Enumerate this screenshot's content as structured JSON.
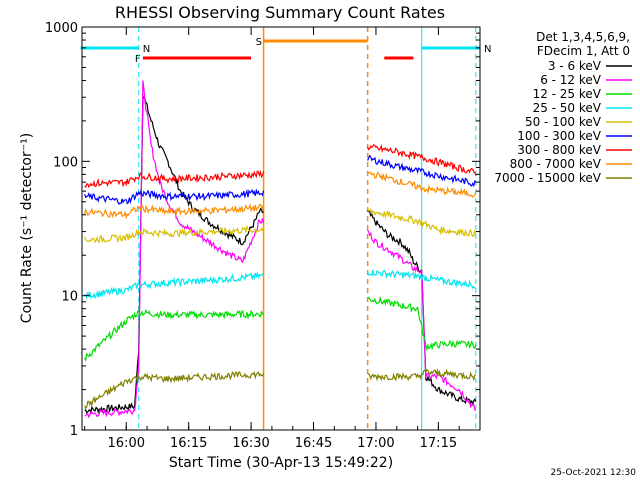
{
  "chart_data": {
    "type": "line",
    "title": "RHESSI Observing Summary Count Rates",
    "xlabel": "Start Time (30-Apr-13 15:49:22)",
    "ylabel": "Count Rate (s⁻¹ detector⁻¹)",
    "yscale": "log",
    "ylim": [
      1,
      1000
    ],
    "xlim": [
      "15:49:22",
      "17:25:00"
    ],
    "x_ticks": [
      "16:00",
      "16:15",
      "16:30",
      "16:45",
      "17:00",
      "17:15"
    ],
    "y_ticks": [
      "1",
      "10",
      "100",
      "1000"
    ],
    "grid": false,
    "legend_position": "right",
    "legend_header": [
      "Det 1,3,4,5,6,9,",
      "FDecim 1, Att 0"
    ],
    "footer_date": "25-Oct-2021 12:30",
    "gaps": [
      {
        "from": "16:33",
        "to": "16:58",
        "note": "no data"
      }
    ],
    "annotations": [
      {
        "label": "F",
        "from": "16:04",
        "to": "16:30",
        "color": "#ff0000"
      },
      {
        "label": "N",
        "from": "15:49",
        "to": "16:03",
        "color": "#00e5ee"
      },
      {
        "label": "N",
        "from": "17:11",
        "to": "17:25",
        "color": "#00e5ee"
      },
      {
        "label": "S",
        "from": "16:33",
        "to": "16:58",
        "color": "#ff8c00"
      },
      {
        "label": "",
        "from": "17:02",
        "to": "17:09",
        "color": "#ff0000"
      }
    ],
    "series": [
      {
        "name": "3 - 6 keV",
        "color": "#000000",
        "x": [
          "15:50",
          "16:02",
          "16:03",
          "16:04",
          "16:06",
          "16:08",
          "16:10",
          "16:13",
          "16:16",
          "16:20",
          "16:25",
          "16:28",
          "16:31",
          "16:32",
          "16:58",
          "17:00",
          "17:03",
          "17:06",
          "17:08",
          "17:09",
          "17:11",
          "17:12",
          "17:15",
          "17:20",
          "17:24"
        ],
        "values": [
          1.4,
          1.5,
          4,
          320,
          200,
          130,
          100,
          60,
          45,
          35,
          28,
          25,
          36,
          42,
          42,
          35,
          28,
          25,
          21,
          18,
          15,
          2.5,
          2,
          1.7,
          1.6
        ]
      },
      {
        "name": "6 - 12 keV",
        "color": "#ff00ff",
        "x": [
          "15:50",
          "16:02",
          "16:03",
          "16:04",
          "16:06",
          "16:08",
          "16:10",
          "16:13",
          "16:16",
          "16:20",
          "16:25",
          "16:28",
          "16:31",
          "16:32",
          "16:58",
          "17:00",
          "17:03",
          "17:06",
          "17:08",
          "17:09",
          "17:11",
          "17:12",
          "17:15",
          "17:20",
          "17:24"
        ],
        "values": [
          1.3,
          1.4,
          3,
          380,
          130,
          70,
          50,
          35,
          30,
          25,
          20,
          18,
          30,
          36,
          30,
          25,
          22,
          19,
          17,
          16,
          15,
          2.5,
          2.5,
          2,
          1.4
        ]
      },
      {
        "name": "12 - 25 keV",
        "color": "#00dd00",
        "x": [
          "15:50",
          "16:00",
          "16:03",
          "16:10",
          "16:20",
          "16:32",
          "16:58",
          "17:10",
          "17:12",
          "17:18",
          "17:24"
        ],
        "values": [
          3.4,
          6.5,
          7.5,
          7.2,
          7.2,
          7.3,
          9.5,
          8.0,
          4.2,
          4.4,
          4.3
        ]
      },
      {
        "name": "25 - 50 keV",
        "color": "#00e5ee",
        "x": [
          "15:50",
          "16:00",
          "16:03",
          "16:10",
          "16:20",
          "16:32",
          "16:58",
          "17:10",
          "17:15",
          "17:24"
        ],
        "values": [
          10,
          11,
          12,
          12.5,
          13,
          14,
          15,
          14,
          13,
          12
        ]
      },
      {
        "name": "50 - 100 keV",
        "color": "#d8c000",
        "x": [
          "15:50",
          "16:00",
          "16:03",
          "16:10",
          "16:20",
          "16:32",
          "16:58",
          "17:10",
          "17:15",
          "17:24"
        ],
        "values": [
          26,
          27,
          30,
          29,
          30,
          31,
          43,
          36,
          31,
          29
        ]
      },
      {
        "name": "100 - 300 keV",
        "color": "#0000ff",
        "x": [
          "15:50",
          "16:00",
          "16:03",
          "16:10",
          "16:20",
          "16:32",
          "16:58",
          "17:05",
          "17:12",
          "17:24"
        ],
        "values": [
          55,
          50,
          58,
          55,
          55,
          58,
          105,
          92,
          82,
          68
        ]
      },
      {
        "name": "300 - 800 keV",
        "color": "#ff0000",
        "x": [
          "15:50",
          "16:00",
          "16:03",
          "16:10",
          "16:20",
          "16:32",
          "16:58",
          "17:05",
          "17:12",
          "17:24"
        ],
        "values": [
          68,
          70,
          78,
          74,
          76,
          80,
          128,
          118,
          105,
          82
        ]
      },
      {
        "name": "800 - 7000 keV",
        "color": "#ff8c00",
        "x": [
          "15:50",
          "16:00",
          "16:03",
          "16:10",
          "16:20",
          "16:32",
          "16:58",
          "17:05",
          "17:12",
          "17:24"
        ],
        "values": [
          42,
          40,
          45,
          42,
          43,
          45,
          82,
          72,
          62,
          57
        ]
      },
      {
        "name": "7000 - 15000 keV",
        "color": "#808000",
        "x": [
          "15:50",
          "16:00",
          "16:03",
          "16:10",
          "16:20",
          "16:32",
          "16:58",
          "17:10",
          "17:12",
          "17:18",
          "17:24"
        ],
        "values": [
          1.5,
          2.3,
          2.5,
          2.4,
          2.5,
          2.6,
          2.5,
          2.5,
          2.7,
          2.6,
          2.5
        ]
      }
    ]
  }
}
